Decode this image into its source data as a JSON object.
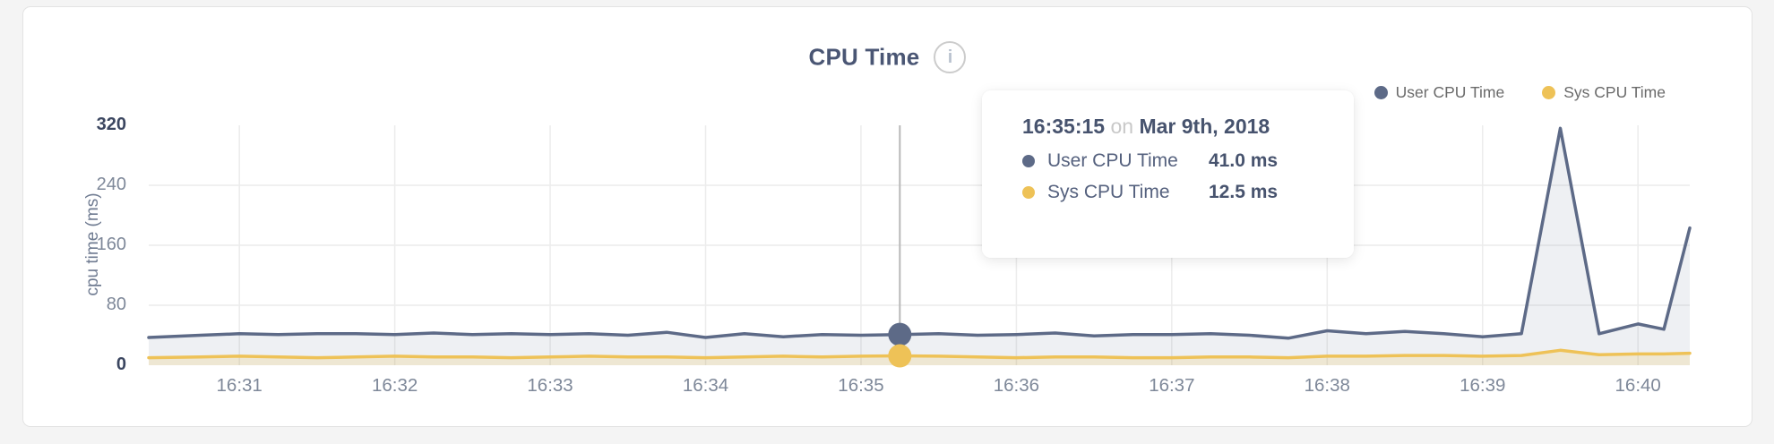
{
  "header": {
    "title": "CPU Time",
    "info_glyph": "i"
  },
  "colors": {
    "user_line": "#5d6a87",
    "user_fill": "rgba(93,106,135,0.10)",
    "sys_line": "#eec257",
    "sys_fill": "rgba(238,194,87,0.20)",
    "grid": "#ececec",
    "hover_line": "#b8b8b8",
    "accent_text": "#47536e"
  },
  "legend": {
    "items": [
      {
        "label": "User CPU Time",
        "color": "#5d6a87"
      },
      {
        "label": "Sys CPU Time",
        "color": "#eec257"
      }
    ]
  },
  "chart_data": {
    "type": "area",
    "title": "CPU Time",
    "xlabel": "",
    "ylabel": "cpu time (ms)",
    "ylim": [
      0,
      320
    ],
    "y_ticks": [
      0,
      80,
      160,
      240,
      320
    ],
    "x_ticks": [
      "16:31",
      "16:32",
      "16:33",
      "16:34",
      "16:35",
      "16:36",
      "16:37",
      "16:38",
      "16:39",
      "16:40"
    ],
    "x_domain": [
      "16:30:25",
      "16:40:20"
    ],
    "grid": true,
    "legend_position": "top-right",
    "x": [
      "16:30:25",
      "16:30:45",
      "16:31:00",
      "16:31:15",
      "16:31:30",
      "16:31:45",
      "16:32:00",
      "16:32:15",
      "16:32:30",
      "16:32:45",
      "16:33:00",
      "16:33:15",
      "16:33:30",
      "16:33:45",
      "16:34:00",
      "16:34:15",
      "16:34:30",
      "16:34:45",
      "16:35:00",
      "16:35:15",
      "16:35:30",
      "16:35:45",
      "16:36:00",
      "16:36:15",
      "16:36:30",
      "16:36:45",
      "16:37:00",
      "16:37:15",
      "16:37:30",
      "16:37:45",
      "16:38:00",
      "16:38:15",
      "16:38:30",
      "16:38:45",
      "16:39:00",
      "16:39:15",
      "16:39:30",
      "16:39:45",
      "16:40:00",
      "16:40:10",
      "16:40:20"
    ],
    "series": [
      {
        "name": "User CPU Time",
        "color": "#5d6a87",
        "fill": "rgba(93,106,135,0.10)",
        "values": [
          37,
          40,
          42,
          41,
          42,
          42,
          41,
          43,
          41,
          42,
          41,
          42,
          40,
          44,
          37,
          42,
          38,
          41,
          40,
          41,
          42,
          40,
          41,
          43,
          39,
          41,
          41,
          42,
          40,
          36,
          46,
          42,
          45,
          42,
          38,
          42,
          316,
          42,
          55,
          48,
          183
        ]
      },
      {
        "name": "Sys CPU Time",
        "color": "#eec257",
        "fill": "rgba(238,194,87,0.20)",
        "values": [
          10,
          11,
          12,
          11,
          10,
          11,
          12,
          11,
          11,
          10,
          11,
          12,
          11,
          11,
          10,
          11,
          12,
          11,
          12,
          12.5,
          12,
          11,
          10,
          11,
          11,
          10,
          10,
          11,
          11,
          10,
          12,
          12,
          13,
          13,
          12,
          13,
          20,
          14,
          15,
          15,
          16
        ]
      }
    ]
  },
  "hover": {
    "time": "16:35:15",
    "user_value": 41.0,
    "sys_value": 12.5
  },
  "tooltip": {
    "time": "16:35:15",
    "connector": "on",
    "date": "Mar 9th, 2018",
    "rows": [
      {
        "name": "User CPU Time",
        "value": "41.0 ms",
        "color": "#5d6a87"
      },
      {
        "name": "Sys CPU Time",
        "value": "12.5 ms",
        "color": "#eec257"
      }
    ]
  }
}
